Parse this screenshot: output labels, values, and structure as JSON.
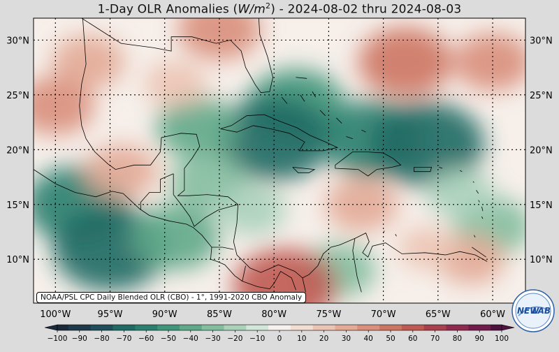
{
  "title": {
    "prefix": "1-Day OLR Anomalies (",
    "unit_var": "W/m",
    "unit_exp": "2",
    "suffix": ") - 2024-08-02 thru 2024-08-03"
  },
  "credit": "NOAA/PSL CPC Daily Blended OLR (CBO) - 1°, 1991-2020 CBO Anomaly",
  "logo_text": {
    "left": "NEW",
    "right": "LAB"
  },
  "map": {
    "lon_range": [
      -102,
      -57
    ],
    "lat_range": [
      6,
      32
    ],
    "lon_ticks": [
      -100,
      -95,
      -90,
      -85,
      -80,
      -75,
      -70,
      -65,
      -60
    ],
    "lon_labels": [
      "100°W",
      "95°W",
      "90°W",
      "85°W",
      "80°W",
      "75°W",
      "70°W",
      "65°W",
      "60°W"
    ],
    "lat_ticks": [
      30,
      25,
      20,
      15,
      10
    ],
    "lat_labels": [
      "30°N",
      "25°N",
      "20°N",
      "15°N",
      "10°N"
    ],
    "anomaly_blobs": [
      {
        "lon": -78,
        "lat": 24,
        "value": -55
      },
      {
        "lon": -80,
        "lat": 21,
        "value": -70
      },
      {
        "lon": -71,
        "lat": 21,
        "value": -60
      },
      {
        "lon": -66,
        "lat": 20.5,
        "value": -70
      },
      {
        "lon": -87,
        "lat": 22,
        "value": -40
      },
      {
        "lon": -98,
        "lat": 15,
        "value": -60
      },
      {
        "lon": -95,
        "lat": 11,
        "value": -70
      },
      {
        "lon": -89,
        "lat": 12,
        "value": -45
      },
      {
        "lon": -86,
        "lat": 17,
        "value": -35
      },
      {
        "lon": -74,
        "lat": 9,
        "value": -30
      },
      {
        "lon": -60,
        "lat": 13,
        "value": -35
      },
      {
        "lon": -63,
        "lat": 16,
        "value": -25
      },
      {
        "lon": -82,
        "lat": 14.5,
        "value": -25
      },
      {
        "lon": -85,
        "lat": 31,
        "value": 40
      },
      {
        "lon": -68,
        "lat": 28,
        "value": 50
      },
      {
        "lon": -60,
        "lat": 28,
        "value": 35
      },
      {
        "lon": -97,
        "lat": 28,
        "value": 30
      },
      {
        "lon": -100,
        "lat": 24,
        "value": 35
      },
      {
        "lon": -94,
        "lat": 18,
        "value": 30
      },
      {
        "lon": -72,
        "lat": 15,
        "value": 30
      },
      {
        "lon": -62,
        "lat": 10,
        "value": 25
      },
      {
        "lon": -79,
        "lat": 7.5,
        "value": 60
      },
      {
        "lon": -89,
        "lat": 26,
        "value": 20
      },
      {
        "lon": -66,
        "lat": 11,
        "value": 15
      }
    ]
  },
  "colorbar": {
    "ticks": [
      -100,
      -90,
      -80,
      -70,
      -60,
      -50,
      -40,
      -30,
      -20,
      -10,
      0,
      10,
      20,
      30,
      40,
      50,
      60,
      70,
      80,
      90,
      100
    ],
    "tick_labels": [
      "−100",
      "−90",
      "−80",
      "−70",
      "−60",
      "−50",
      "−40",
      "−30",
      "−20",
      "−10",
      "0",
      "10",
      "20",
      "30",
      "40",
      "50",
      "60",
      "70",
      "80",
      "90",
      "100"
    ],
    "colors": {
      "-100": "#1a2a3a",
      "-90": "#1e3a4a",
      "-80": "#1f4e5a",
      "-70": "#1f6a64",
      "-60": "#2a7f6e",
      "-50": "#3f9479",
      "-40": "#5fa88a",
      "-30": "#84bea0",
      "-20": "#aad2bb",
      "-10": "#d2e6da",
      "0": "#f6f1ee",
      "10": "#f3ddd3",
      "20": "#ecc4b4",
      "30": "#e3aa96",
      "40": "#d98f7b",
      "50": "#cd7563",
      "60": "#bf5a52",
      "70": "#a8404d",
      "80": "#8e2b4e",
      "90": "#711c4d",
      "100": "#4e1240"
    }
  }
}
